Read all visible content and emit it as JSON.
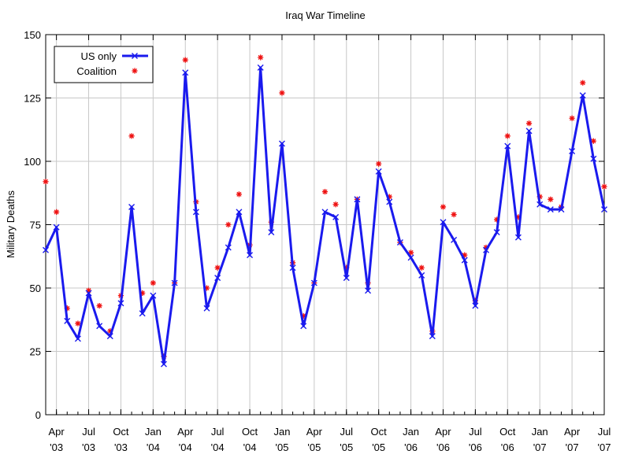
{
  "chart_data": {
    "type": "line",
    "title": "Iraq War Timeline",
    "xlabel": "",
    "ylabel": "Military Deaths",
    "ylim": [
      0,
      150
    ],
    "y_ticks": [
      0,
      25,
      50,
      75,
      100,
      125,
      150
    ],
    "x_start": "2003-03",
    "x_end": "2007-07",
    "x_ticks": [
      {
        "x": "2003-04",
        "month": "Apr",
        "year": "'03"
      },
      {
        "x": "2003-07",
        "month": "Jul",
        "year": "'03"
      },
      {
        "x": "2003-10",
        "month": "Oct",
        "year": "'03"
      },
      {
        "x": "2004-01",
        "month": "Jan",
        "year": "'04"
      },
      {
        "x": "2004-04",
        "month": "Apr",
        "year": "'04"
      },
      {
        "x": "2004-07",
        "month": "Jul",
        "year": "'04"
      },
      {
        "x": "2004-10",
        "month": "Oct",
        "year": "'04"
      },
      {
        "x": "2005-01",
        "month": "Jan",
        "year": "'05"
      },
      {
        "x": "2005-04",
        "month": "Apr",
        "year": "'05"
      },
      {
        "x": "2005-07",
        "month": "Jul",
        "year": "'05"
      },
      {
        "x": "2005-10",
        "month": "Oct",
        "year": "'05"
      },
      {
        "x": "2006-01",
        "month": "Jan",
        "year": "'06"
      },
      {
        "x": "2006-04",
        "month": "Apr",
        "year": "'06"
      },
      {
        "x": "2006-07",
        "month": "Jul",
        "year": "'06"
      },
      {
        "x": "2006-10",
        "month": "Oct",
        "year": "'06"
      },
      {
        "x": "2007-01",
        "month": "Jan",
        "year": "'07"
      },
      {
        "x": "2007-04",
        "month": "Apr",
        "year": "'07"
      },
      {
        "x": "2007-07",
        "month": "Jul",
        "year": "'07"
      }
    ],
    "grid": true,
    "legend_position": "top-left",
    "x": [
      "2003-03",
      "2003-04",
      "2003-05",
      "2003-06",
      "2003-07",
      "2003-08",
      "2003-09",
      "2003-10",
      "2003-11",
      "2003-12",
      "2004-01",
      "2004-02",
      "2004-03",
      "2004-04",
      "2004-05",
      "2004-06",
      "2004-07",
      "2004-08",
      "2004-09",
      "2004-10",
      "2004-11",
      "2004-12",
      "2005-01",
      "2005-02",
      "2005-03",
      "2005-04",
      "2005-05",
      "2005-06",
      "2005-07",
      "2005-08",
      "2005-09",
      "2005-10",
      "2005-11",
      "2005-12",
      "2006-01",
      "2006-02",
      "2006-03",
      "2006-04",
      "2006-05",
      "2006-06",
      "2006-07",
      "2006-08",
      "2006-09",
      "2006-10",
      "2006-11",
      "2006-12",
      "2007-01",
      "2007-02",
      "2007-03",
      "2007-04",
      "2007-05",
      "2007-06",
      "2007-07"
    ],
    "series": [
      {
        "name": "US only",
        "color": "#1a1aee",
        "marker": "x",
        "style": "line",
        "values": [
          65,
          74,
          37,
          30,
          48,
          35,
          31,
          44,
          82,
          40,
          47,
          20,
          52,
          135,
          80,
          42,
          54,
          66,
          80,
          63,
          137,
          72,
          107,
          58,
          35,
          52,
          80,
          78,
          54,
          85,
          49,
          96,
          84,
          68,
          62,
          55,
          31,
          76,
          69,
          61,
          43,
          65,
          72,
          106,
          70,
          112,
          83,
          81,
          81,
          104,
          126,
          101,
          81
        ]
      },
      {
        "name": "Coalition",
        "color": "#ee1111",
        "marker": "asterisk",
        "style": "points",
        "values": [
          92,
          80,
          42,
          36,
          49,
          43,
          33,
          47,
          110,
          48,
          52,
          23,
          52,
          140,
          84,
          50,
          58,
          75,
          87,
          67,
          141,
          76,
          127,
          60,
          39,
          52,
          88,
          83,
          58,
          85,
          52,
          99,
          86,
          68,
          64,
          58,
          33,
          82,
          79,
          63,
          45,
          66,
          77,
          110,
          78,
          115,
          86,
          85,
          82,
          117,
          131,
          108,
          90
        ]
      }
    ]
  }
}
